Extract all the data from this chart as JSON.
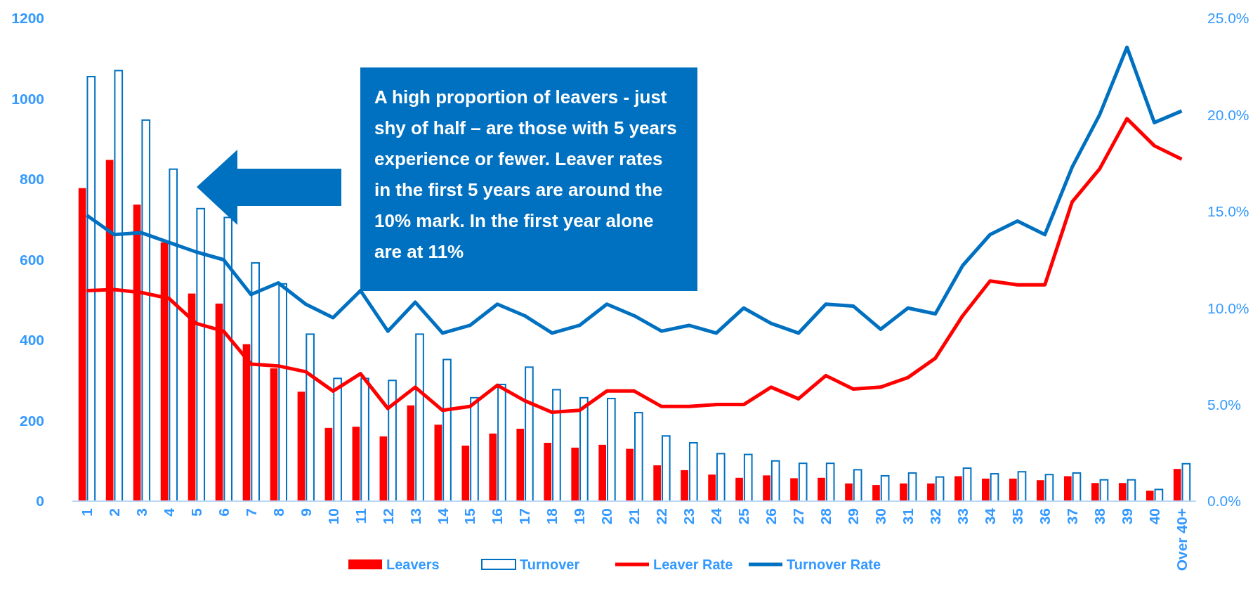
{
  "chart_data": {
    "type": "bar",
    "categories": [
      "1",
      "2",
      "3",
      "4",
      "5",
      "6",
      "7",
      "8",
      "9",
      "10",
      "11",
      "12",
      "13",
      "14",
      "15",
      "16",
      "17",
      "18",
      "19",
      "20",
      "21",
      "22",
      "23",
      "24",
      "25",
      "26",
      "27",
      "28",
      "29",
      "30",
      "31",
      "32",
      "33",
      "34",
      "35",
      "36",
      "37",
      "38",
      "39",
      "40",
      "Over 40+"
    ],
    "series": [
      {
        "name": "Leavers",
        "color": "#ff0000",
        "values": [
          778,
          848,
          737,
          643,
          516,
          491,
          390,
          330,
          272,
          182,
          185,
          161,
          238,
          190,
          138,
          168,
          180,
          145,
          133,
          140,
          130,
          89,
          77,
          66,
          58,
          64,
          57,
          58,
          44,
          40,
          44,
          44,
          62,
          56,
          56,
          52,
          62,
          45,
          45,
          26,
          80
        ]
      },
      {
        "name": "Turnover",
        "color": "#0070c0",
        "values": [
          1055,
          1070,
          947,
          825,
          727,
          705,
          592,
          540,
          415,
          305,
          305,
          300,
          415,
          352,
          257,
          290,
          333,
          277,
          257,
          255,
          220,
          162,
          145,
          118,
          116,
          100,
          94,
          94,
          78,
          63,
          70,
          60,
          82,
          68,
          73,
          66,
          70,
          53,
          53,
          29,
          93
        ]
      },
      {
        "name": "Leaver Rate",
        "type": "line",
        "axis": "y2",
        "color": "#ff0000",
        "values": [
          10.9,
          10.95,
          10.8,
          10.5,
          9.2,
          8.8,
          7.1,
          7.0,
          6.7,
          5.7,
          6.6,
          4.8,
          5.9,
          4.7,
          4.9,
          6.0,
          5.2,
          4.6,
          4.7,
          5.7,
          5.7,
          4.9,
          4.9,
          5.0,
          5.0,
          5.9,
          5.3,
          6.5,
          5.8,
          5.9,
          6.4,
          7.4,
          9.6,
          11.4,
          11.2,
          11.2,
          15.5,
          17.2,
          19.8,
          18.4,
          17.7
        ]
      },
      {
        "name": "Turnover Rate",
        "type": "line",
        "axis": "y2",
        "color": "#0070c0",
        "values": [
          14.8,
          13.8,
          13.9,
          13.4,
          12.9,
          12.5,
          10.7,
          11.3,
          10.2,
          9.5,
          10.9,
          8.8,
          10.3,
          8.7,
          9.1,
          10.2,
          9.6,
          8.7,
          9.1,
          10.2,
          9.6,
          8.8,
          9.1,
          8.7,
          10.0,
          9.2,
          8.7,
          10.2,
          10.1,
          8.9,
          10.0,
          9.7,
          12.2,
          13.8,
          14.5,
          13.8,
          17.3,
          20.0,
          23.5,
          19.6,
          20.2
        ]
      }
    ],
    "ylim": [
      0,
      1200
    ],
    "yticks": [
      0,
      200,
      400,
      600,
      800,
      1000,
      1200
    ],
    "y2lim": [
      0,
      25
    ],
    "y2ticks": [
      {
        "value": 0,
        "label": "0.0%"
      },
      {
        "value": 5,
        "label": "5.0%"
      },
      {
        "value": 10,
        "label": "10.0%"
      },
      {
        "value": 15,
        "label": "15.0%"
      },
      {
        "value": 20,
        "label": "20.0%"
      },
      {
        "value": 25,
        "label": "25.0%"
      }
    ],
    "annotations": [
      "A high proportion of leavers - just shy of half – are those with 5 years experience or fewer. Leaver rates in the first 5 years are around the 10% mark. In the first year alone are at 11%"
    ],
    "legend": "bottom",
    "grid": false
  }
}
